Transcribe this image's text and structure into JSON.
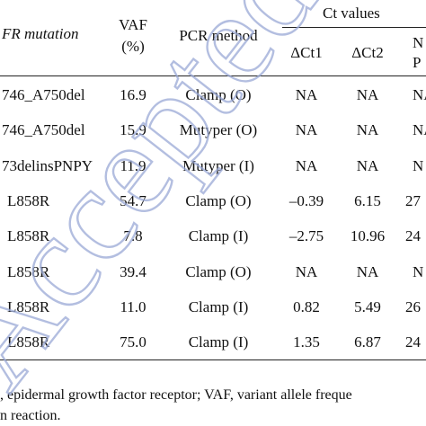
{
  "header": {
    "mutation": "FR mutation",
    "vaf_line1": "VAF",
    "vaf_line2": "(%)",
    "pcr": "PCR method",
    "ct_group": "Ct values",
    "dct1": "ΔCt1",
    "dct2": "ΔCt2",
    "col6_line1": "N",
    "col6_line2": "P"
  },
  "rows": [
    {
      "mutation": "746_A750del",
      "vaf": "16.9",
      "pcr": "Clamp (O)",
      "dct1": "NA",
      "dct2": "NA",
      "col6": "NA"
    },
    {
      "mutation": "746_A750del",
      "vaf": "15.9",
      "pcr": "Mutyper (O)",
      "dct1": "NA",
      "dct2": "NA",
      "col6": "NA"
    },
    {
      "mutation": "73delinsPNPY",
      "vaf": "11.9",
      "pcr": "Mutyper (I)",
      "dct1": "NA",
      "dct2": "NA",
      "col6": "N"
    },
    {
      "mutation": "L858R",
      "vaf": "54.7",
      "pcr": "Clamp (O)",
      "dct1": "–0.39",
      "dct2": "6.15",
      "col6": "27"
    },
    {
      "mutation": "L858R",
      "vaf": "7.8",
      "pcr": "Clamp (I)",
      "dct1": "–2.75",
      "dct2": "10.96",
      "col6": "24"
    },
    {
      "mutation": "L858R",
      "vaf": "39.4",
      "pcr": "Clamp (O)",
      "dct1": "NA",
      "dct2": "NA",
      "col6": "N"
    },
    {
      "mutation": "L858R",
      "vaf": "11.0",
      "pcr": "Clamp (I)",
      "dct1": "0.82",
      "dct2": "5.49",
      "col6": "26"
    },
    {
      "mutation": "L858R",
      "vaf": "75.0",
      "pcr": "Clamp (I)",
      "dct1": "1.35",
      "dct2": "6.87",
      "col6": "24"
    }
  ],
  "footnote": {
    "line1": ", epidermal growth factor receptor; VAF, variant allele freque",
    "line2": "n reaction."
  },
  "watermark": {
    "text": "Accepted",
    "color": "#9aa9d6"
  }
}
